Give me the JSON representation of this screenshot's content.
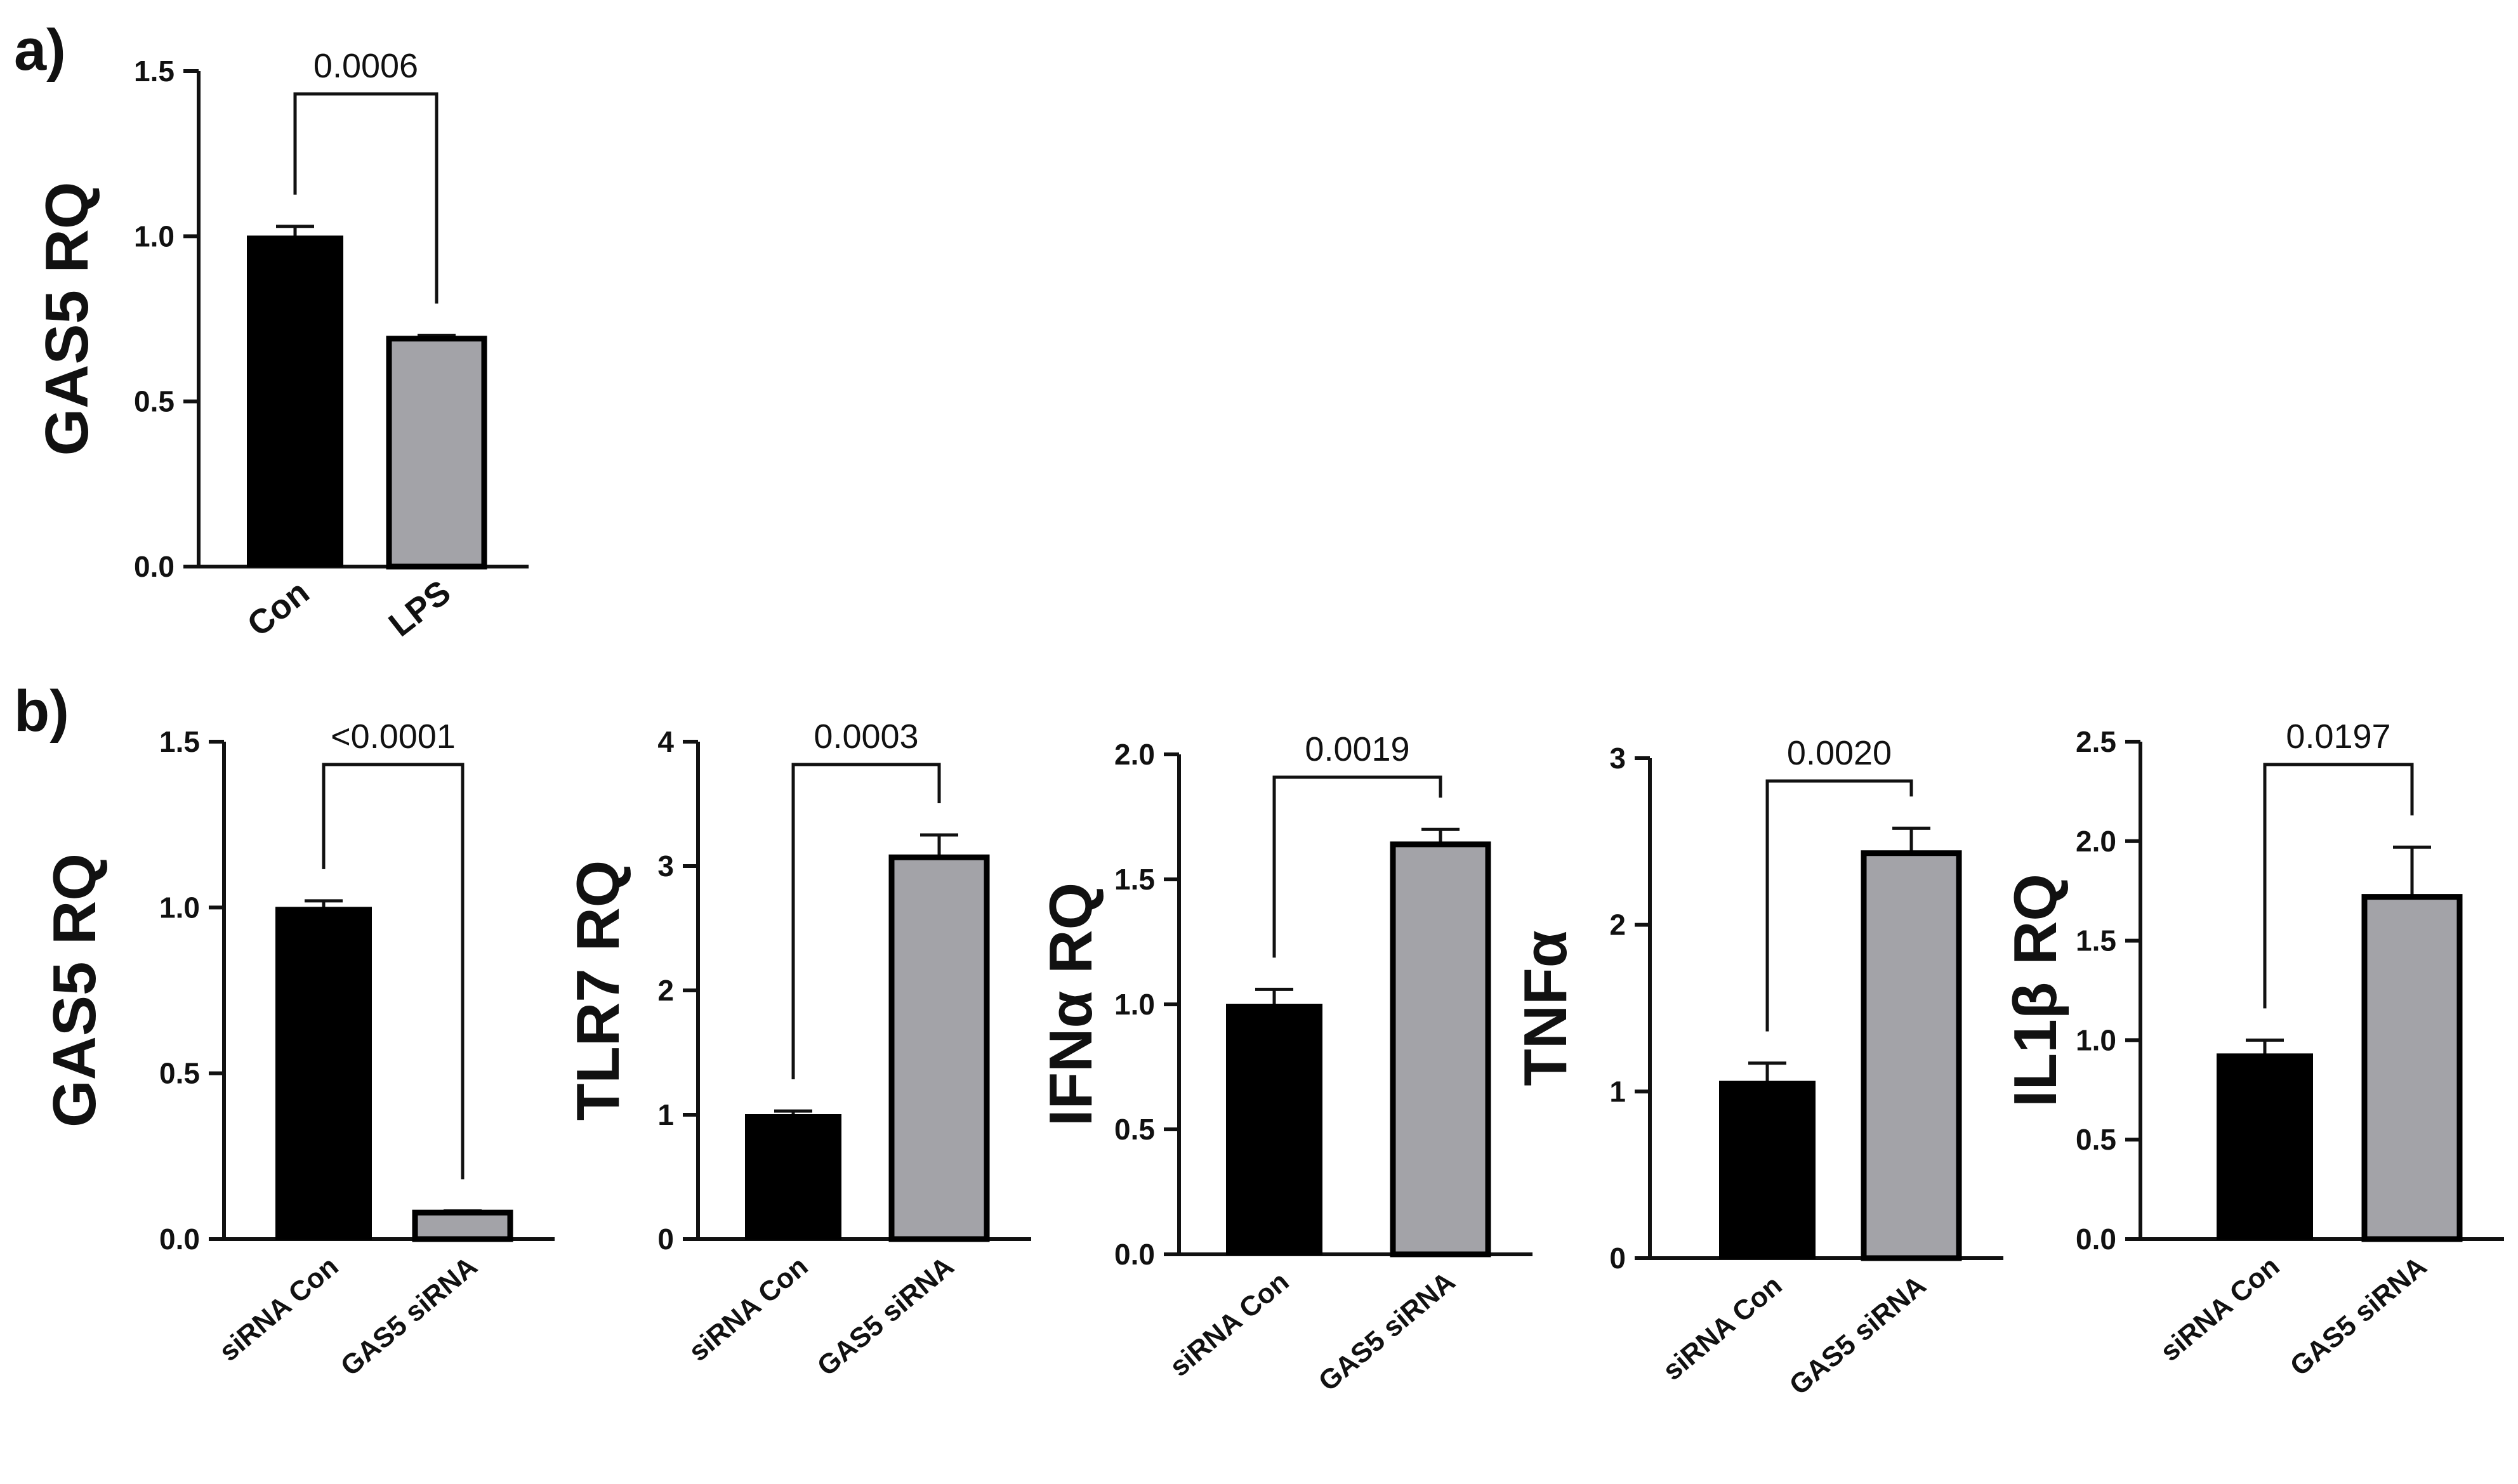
{
  "panels": [
    {
      "letter": "a)"
    },
    {
      "letter": "b)"
    }
  ],
  "chart_data": [
    {
      "type": "bar",
      "panel": "a)",
      "ylabel": "GAS5 RQ",
      "categories": [
        "Con",
        "LPS"
      ],
      "values": [
        1.0,
        0.69
      ],
      "errors": [
        0.03,
        0.01
      ],
      "colors": [
        "#000000",
        "#a3a3a8"
      ],
      "ylim": [
        0,
        1.5
      ],
      "yticks": [
        "0.0",
        "0.5",
        "1.0",
        "1.5"
      ],
      "pvalue": "0.0006"
    },
    {
      "type": "bar",
      "panel": "b)",
      "ylabel": "GAS5 RQ",
      "categories": [
        "siRNA Con",
        "GAS5 siRNA"
      ],
      "values": [
        1.0,
        0.08
      ],
      "errors": [
        0.02,
        0.005
      ],
      "colors": [
        "#000000",
        "#a3a3a8"
      ],
      "ylim": [
        0,
        1.5
      ],
      "yticks": [
        "0.0",
        "0.5",
        "1.0",
        "1.5"
      ],
      "pvalue": "<0.0001"
    },
    {
      "type": "bar",
      "panel": "b)",
      "ylabel": "TLR7 RQ",
      "categories": [
        "siRNA Con",
        "GAS5 siRNA"
      ],
      "values": [
        1.0,
        3.07
      ],
      "errors": [
        0.03,
        0.18
      ],
      "colors": [
        "#000000",
        "#a3a3a8"
      ],
      "ylim": [
        0,
        4
      ],
      "yticks": [
        "0",
        "1",
        "2",
        "3",
        "4"
      ],
      "pvalue": "0.0003"
    },
    {
      "type": "bar",
      "panel": "b)",
      "ylabel": "IFNα RQ",
      "categories": [
        "siRNA Con",
        "GAS5 siRNA"
      ],
      "values": [
        1.0,
        1.64
      ],
      "errors": [
        0.06,
        0.06
      ],
      "colors": [
        "#000000",
        "#a3a3a8"
      ],
      "ylim": [
        0,
        2.0
      ],
      "yticks": [
        "0.0",
        "0.5",
        "1.0",
        "1.5",
        "2.0"
      ],
      "pvalue": "0.0019"
    },
    {
      "type": "bar",
      "panel": "b)",
      "ylabel": "TNFα",
      "categories": [
        "siRNA Con",
        "GAS5 siRNA"
      ],
      "values": [
        1.06,
        2.43
      ],
      "errors": [
        0.11,
        0.15
      ],
      "colors": [
        "#000000",
        "#a3a3a8"
      ],
      "ylim": [
        0,
        3
      ],
      "yticks": [
        "0",
        "1",
        "2",
        "3"
      ],
      "pvalue": "0.0020"
    },
    {
      "type": "bar",
      "panel": "b)",
      "ylabel": "IL1β RQ",
      "categories": [
        "siRNA Con",
        "GAS5 siRNA"
      ],
      "values": [
        0.93,
        1.72
      ],
      "errors": [
        0.07,
        0.25
      ],
      "colors": [
        "#000000",
        "#a3a3a8"
      ],
      "ylim": [
        0,
        2.5
      ],
      "yticks": [
        "0.0",
        "0.5",
        "1.0",
        "1.5",
        "2.0",
        "2.5"
      ],
      "pvalue": "0.0197"
    }
  ]
}
